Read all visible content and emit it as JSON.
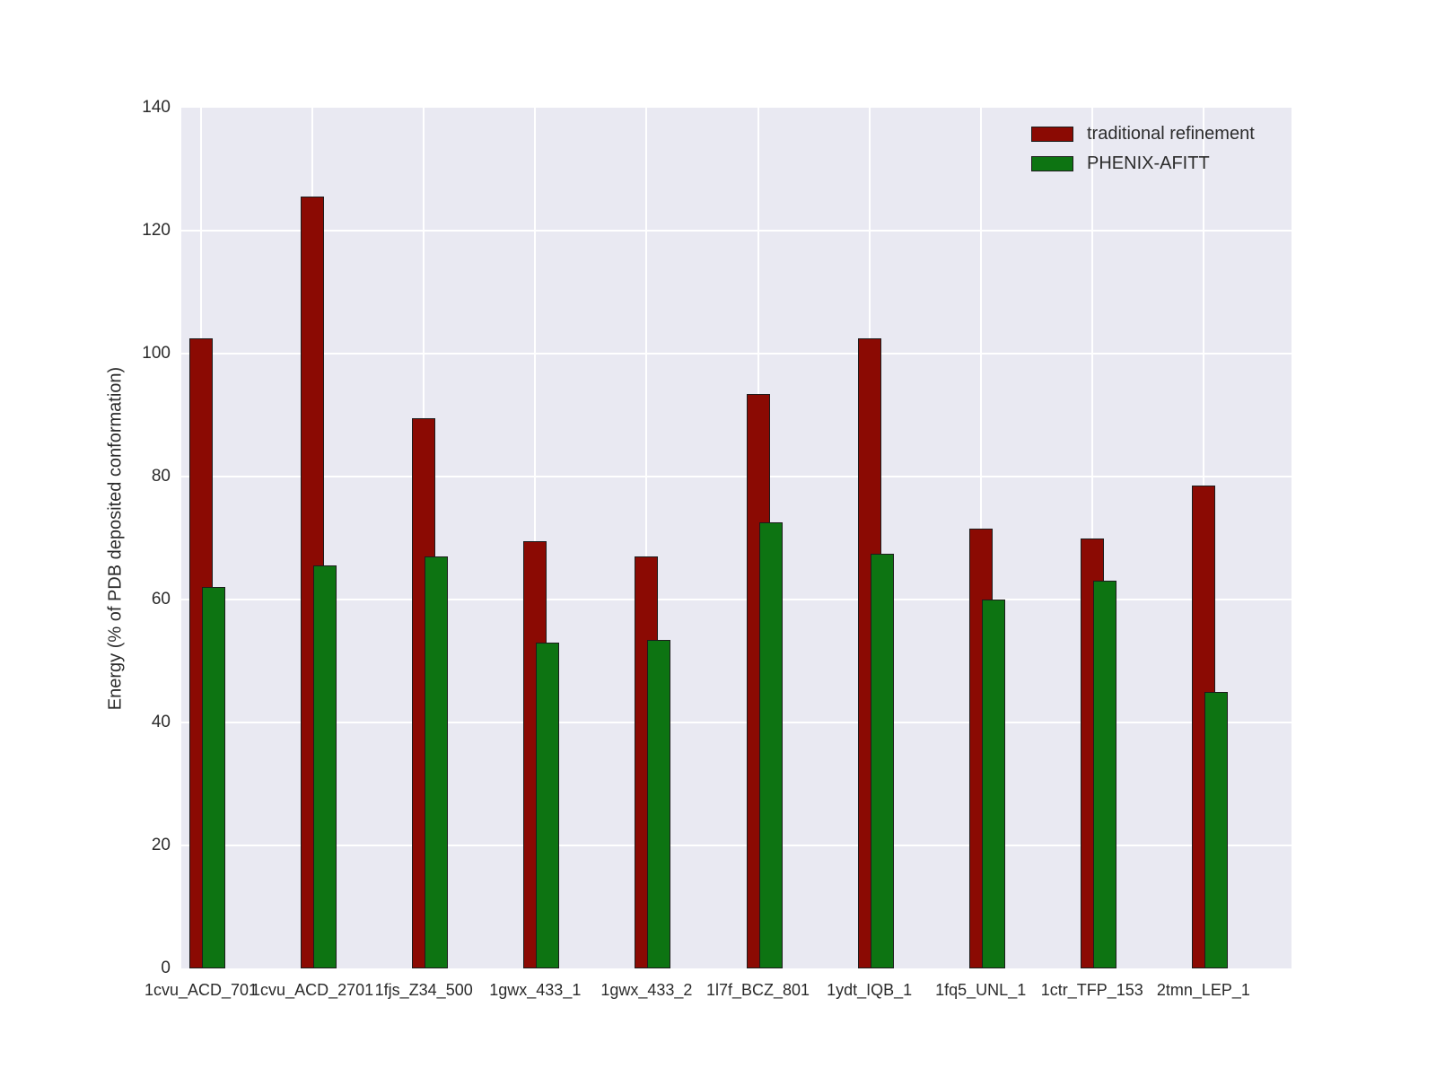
{
  "chart_data": {
    "type": "bar",
    "title": "",
    "xlabel": "",
    "ylabel": "Energy (% of PDB deposited conformation)",
    "ylim": [
      0,
      140
    ],
    "yticks": [
      0,
      20,
      40,
      60,
      80,
      100,
      120,
      140
    ],
    "grid": true,
    "grid_color": "#ffffff",
    "plot_background": "#e9e9f2",
    "figure_background": "#ffffff",
    "bar_edge_color": "#1c1c1c",
    "legend_position": "upper right",
    "categories": [
      "1cvu_ACD_701",
      "1cvu_ACD_2701",
      "1fjs_Z34_500",
      "1gwx_433_1",
      "1gwx_433_2",
      "1l7f_BCZ_801",
      "1ydt_IQB_1",
      "1fq5_UNL_1",
      "1ctr_TFP_153",
      "2tmn_LEP_1"
    ],
    "series": [
      {
        "name": "traditional refinement",
        "color": "#8b0a03",
        "values": [
          102.5,
          125.5,
          89.5,
          69.5,
          67,
          93.5,
          102.5,
          71.5,
          70,
          78.5
        ]
      },
      {
        "name": "PHENIX-AFITT",
        "color": "#0d7412",
        "values": [
          62,
          65.5,
          67,
          53,
          53.5,
          72.5,
          67.5,
          60,
          63,
          45
        ]
      }
    ]
  }
}
